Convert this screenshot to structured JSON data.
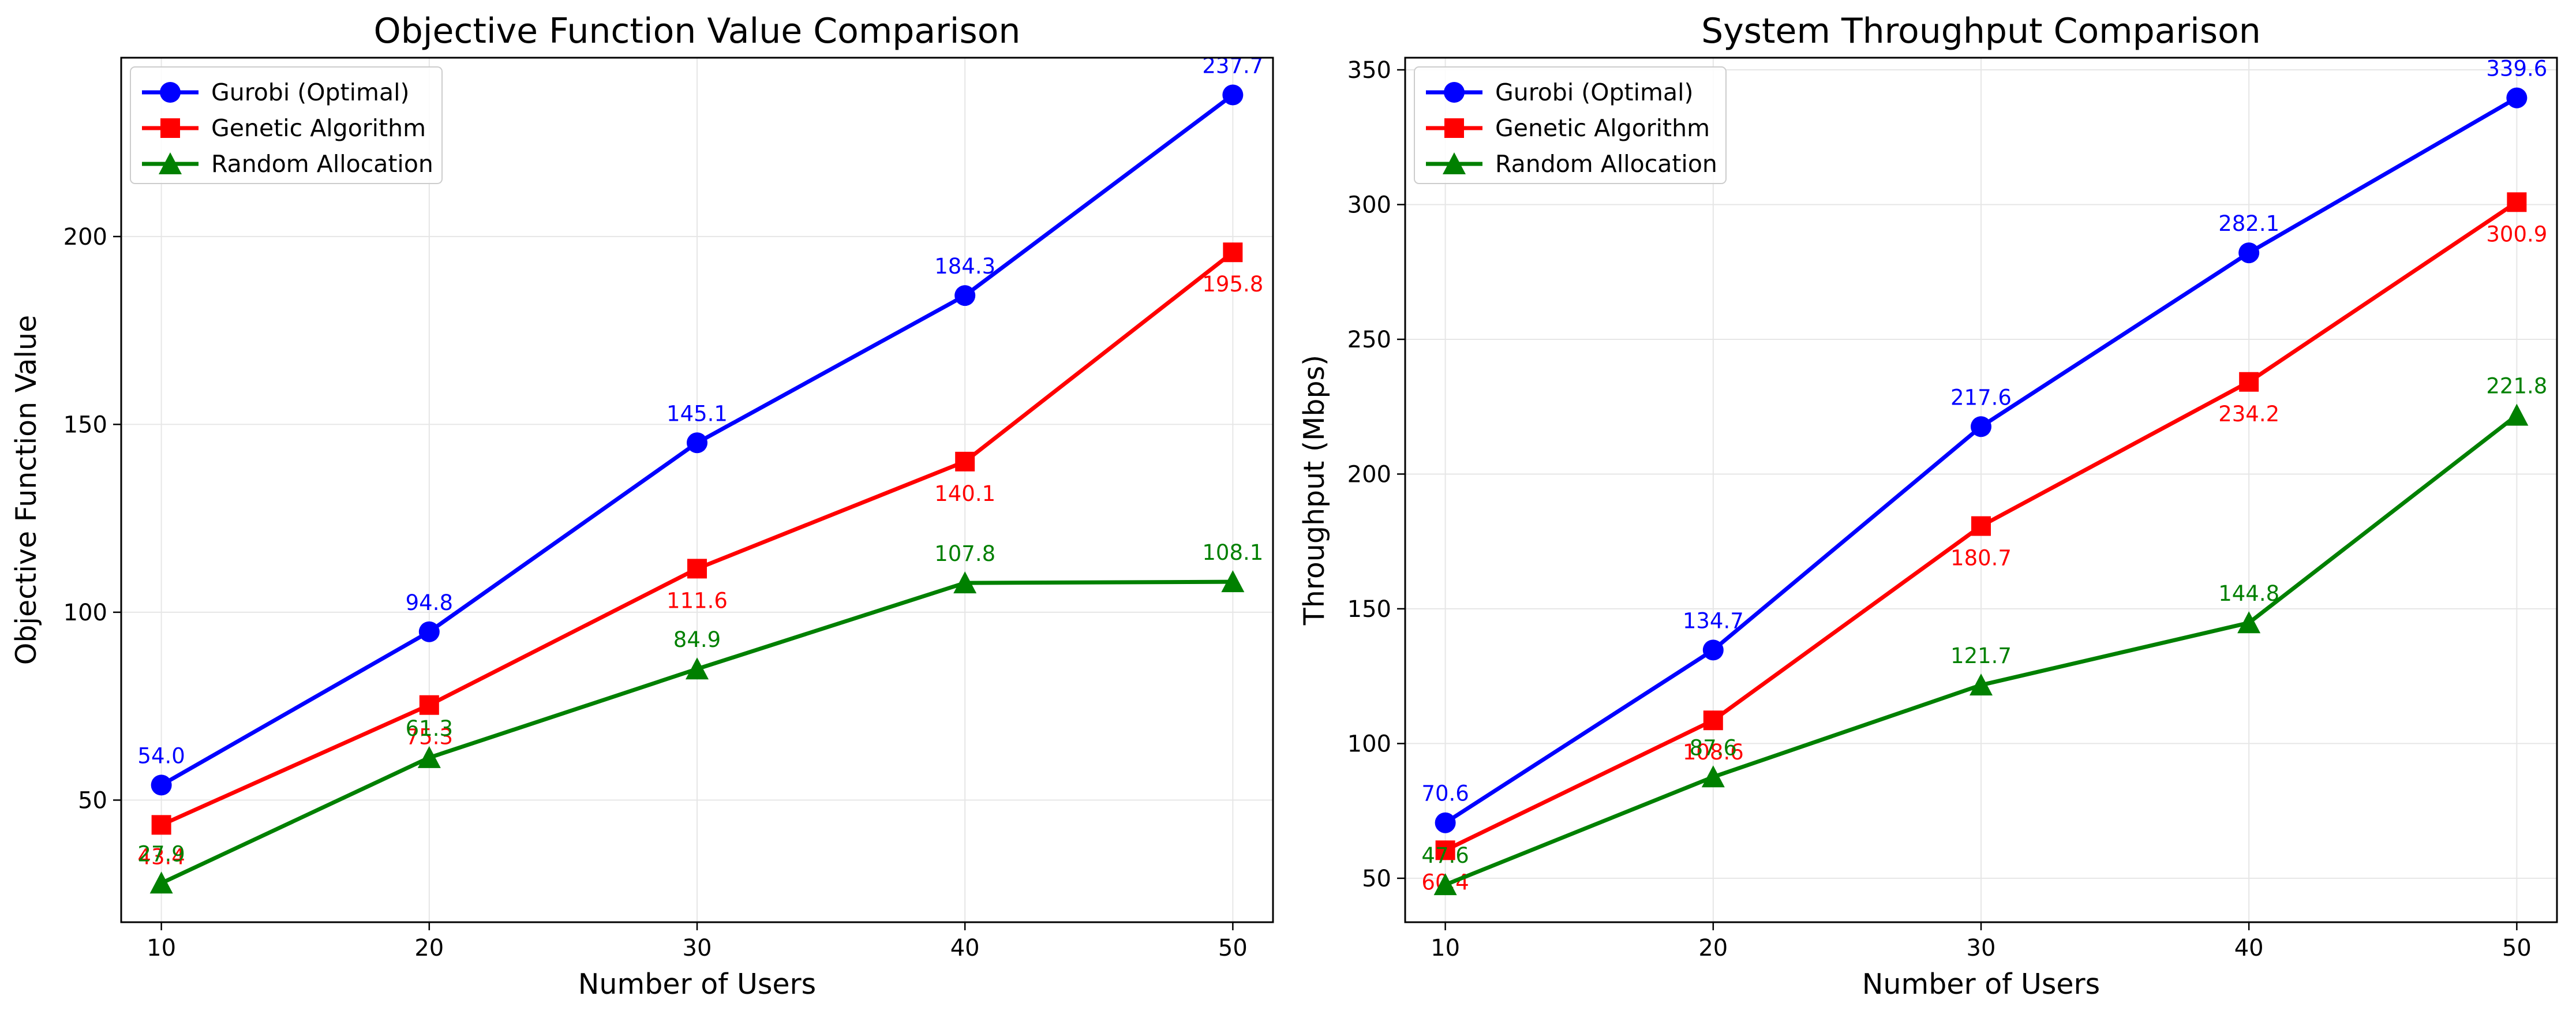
{
  "chart_data": [
    {
      "type": "line",
      "title": "Objective Function Value Comparison",
      "xlabel": "Number of Users",
      "ylabel": "Objective Function Value",
      "x": [
        10,
        20,
        30,
        40,
        50
      ],
      "xticks": [
        "10",
        "20",
        "30",
        "40",
        "50"
      ],
      "yticks": [
        "50",
        "100",
        "150",
        "200"
      ],
      "xlim": [
        8.5,
        51.5
      ],
      "ylim": [
        17.5,
        247.6
      ],
      "grid": true,
      "legend_position": "upper left",
      "series": [
        {
          "name": "Gurobi (Optimal)",
          "color": "#0000ff",
          "marker": "circle",
          "values": [
            54.0,
            94.8,
            145.1,
            184.3,
            237.7
          ],
          "labels": [
            "54.0",
            "94.8",
            "145.1",
            "184.3",
            "237.7"
          ],
          "label_side": "above"
        },
        {
          "name": "Genetic Algorithm",
          "color": "#ff0000",
          "marker": "square",
          "values": [
            43.4,
            75.3,
            111.6,
            140.1,
            195.8
          ],
          "labels": [
            "43.4",
            "75.3",
            "111.6",
            "140.1",
            "195.8"
          ],
          "label_side": "below"
        },
        {
          "name": "Random Allocation",
          "color": "#008000",
          "marker": "triangle",
          "values": [
            27.9,
            61.3,
            84.9,
            107.8,
            108.1
          ],
          "labels": [
            "27.9",
            "61.3",
            "84.9",
            "107.8",
            "108.1"
          ],
          "label_side": "above"
        }
      ]
    },
    {
      "type": "line",
      "title": "System Throughput Comparison",
      "xlabel": "Number of Users",
      "ylabel": "Throughput (Mbps)",
      "x": [
        10,
        20,
        30,
        40,
        50
      ],
      "xticks": [
        "10",
        "20",
        "30",
        "40",
        "50"
      ],
      "yticks": [
        "50",
        "100",
        "150",
        "200",
        "250",
        "300",
        "350"
      ],
      "xlim": [
        8.5,
        51.5
      ],
      "ylim": [
        33.7,
        354.5
      ],
      "grid": true,
      "legend_position": "upper left",
      "series": [
        {
          "name": "Gurobi (Optimal)",
          "color": "#0000ff",
          "marker": "circle",
          "values": [
            70.6,
            134.7,
            217.6,
            282.1,
            339.6
          ],
          "labels": [
            "70.6",
            "134.7",
            "217.6",
            "282.1",
            "339.6"
          ],
          "label_side": "above"
        },
        {
          "name": "Genetic Algorithm",
          "color": "#ff0000",
          "marker": "square",
          "values": [
            60.4,
            108.6,
            180.7,
            234.2,
            300.9
          ],
          "labels": [
            "60.4",
            "108.6",
            "180.7",
            "234.2",
            "300.9"
          ],
          "label_side": "below"
        },
        {
          "name": "Random Allocation",
          "color": "#008000",
          "marker": "triangle",
          "values": [
            47.6,
            87.6,
            121.7,
            144.8,
            221.8
          ],
          "labels": [
            "47.6",
            "87.6",
            "121.7",
            "144.8",
            "221.8"
          ],
          "label_side": "above"
        }
      ]
    }
  ]
}
